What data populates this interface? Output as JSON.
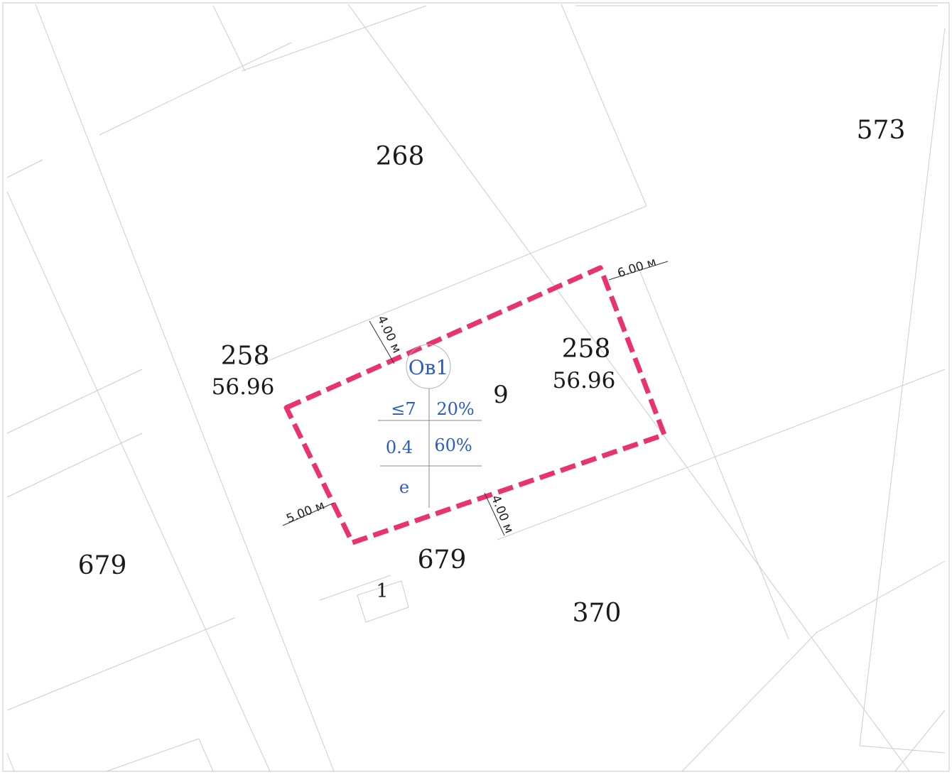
{
  "map": {
    "parcels": {
      "p573": "573",
      "p268": "268",
      "p258_left": "258",
      "p258_left_area": "56.96",
      "p258_right": "258",
      "p258_right_area": "56.96",
      "p9": "9",
      "p679_left": "679",
      "p679_bottom": "679",
      "p1": "1",
      "p370": "370"
    },
    "zone": {
      "code": "Ов1",
      "max_height": "≤7",
      "min_green": "20%",
      "density": "0.4",
      "max_coverage": "60%",
      "code_extra": "е"
    },
    "dimensions": {
      "top_right": "6.00 м",
      "top_left": "4.00 м",
      "bottom_left": "5.00 м",
      "bottom_right": "4.00 м"
    },
    "colors": {
      "boundary": "#e8336b",
      "zone_text": "#2b5cc4",
      "parcel_lines": "#c9ccd6"
    },
    "icons": {
      "zone_marker": "circle-icon"
    }
  }
}
